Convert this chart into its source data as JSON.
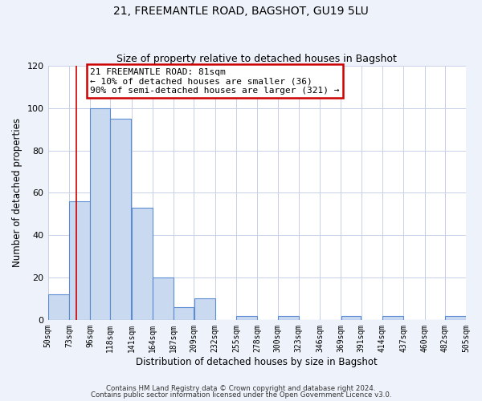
{
  "title_line1": "21, FREEMANTLE ROAD, BAGSHOT, GU19 5LU",
  "title_line2": "Size of property relative to detached houses in Bagshot",
  "xlabel": "Distribution of detached houses by size in Bagshot",
  "ylabel": "Number of detached properties",
  "bar_edges": [
    50,
    73,
    96,
    118,
    141,
    164,
    187,
    209,
    232,
    255,
    278,
    300,
    323,
    346,
    369,
    391,
    414,
    437,
    460,
    482,
    505
  ],
  "bar_heights": [
    12,
    56,
    100,
    95,
    53,
    20,
    6,
    10,
    0,
    2,
    0,
    2,
    0,
    0,
    2,
    0,
    2,
    0,
    0,
    2
  ],
  "bar_color": "#c9d9f0",
  "bar_edge_color": "#5b8bd0",
  "ylim": [
    0,
    120
  ],
  "yticks": [
    0,
    20,
    40,
    60,
    80,
    100,
    120
  ],
  "red_line_x": 81,
  "annotation_title": "21 FREEMANTLE ROAD: 81sqm",
  "annotation_line1": "← 10% of detached houses are smaller (36)",
  "annotation_line2": "90% of semi-detached houses are larger (321) →",
  "annotation_box_color": "#ffffff",
  "annotation_box_edge_color": "#cc0000",
  "footer_line1": "Contains HM Land Registry data © Crown copyright and database right 2024.",
  "footer_line2": "Contains public sector information licensed under the Open Government Licence v3.0.",
  "background_color": "#eef2fa",
  "plot_background_color": "#ffffff",
  "grid_color": "#c8d0e8"
}
